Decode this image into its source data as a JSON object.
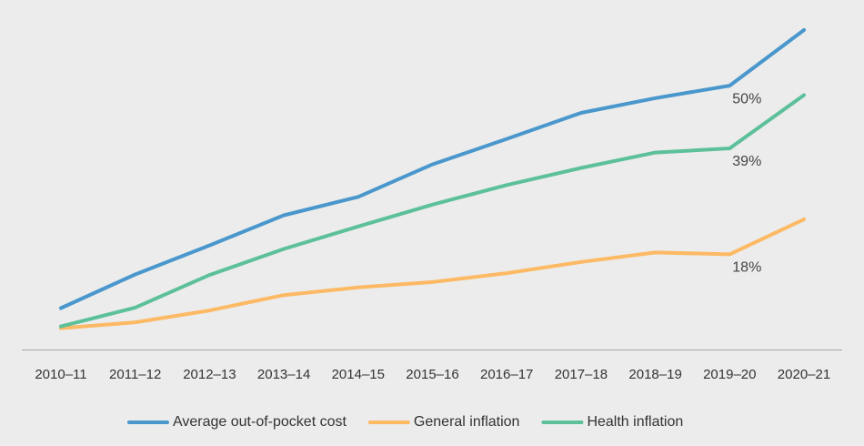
{
  "chart_data": {
    "type": "line",
    "title": "",
    "xlabel": "",
    "ylabel": "",
    "ylim": [
      -0.04,
      0.52
    ],
    "grid": false,
    "legend": "bottom-center",
    "categories": [
      "2010–11",
      "2011–12",
      "2012–13",
      "2013–14",
      "2014–15",
      "2015–16",
      "2016–17",
      "2017–18",
      "2018–19",
      "2019–20",
      "2020–21"
    ],
    "series": [
      {
        "name": "Average out-of-pocket cost",
        "color": "#4a97cd",
        "values": [
          0.03,
          0.087,
          0.136,
          0.187,
          0.218,
          0.273,
          0.316,
          0.36,
          0.385,
          0.406,
          0.5
        ],
        "end_label": "50%"
      },
      {
        "name": "General inflation",
        "color": "#fdb964",
        "values": [
          -0.004,
          0.006,
          0.026,
          0.052,
          0.065,
          0.074,
          0.089,
          0.108,
          0.124,
          0.121,
          0.18
        ],
        "end_label": "18%"
      },
      {
        "name": "Health inflation",
        "color": "#5cc09a",
        "values": [
          -0.001,
          0.031,
          0.086,
          0.13,
          0.168,
          0.205,
          0.238,
          0.267,
          0.293,
          0.3,
          0.39
        ],
        "end_label": "39%"
      }
    ]
  }
}
